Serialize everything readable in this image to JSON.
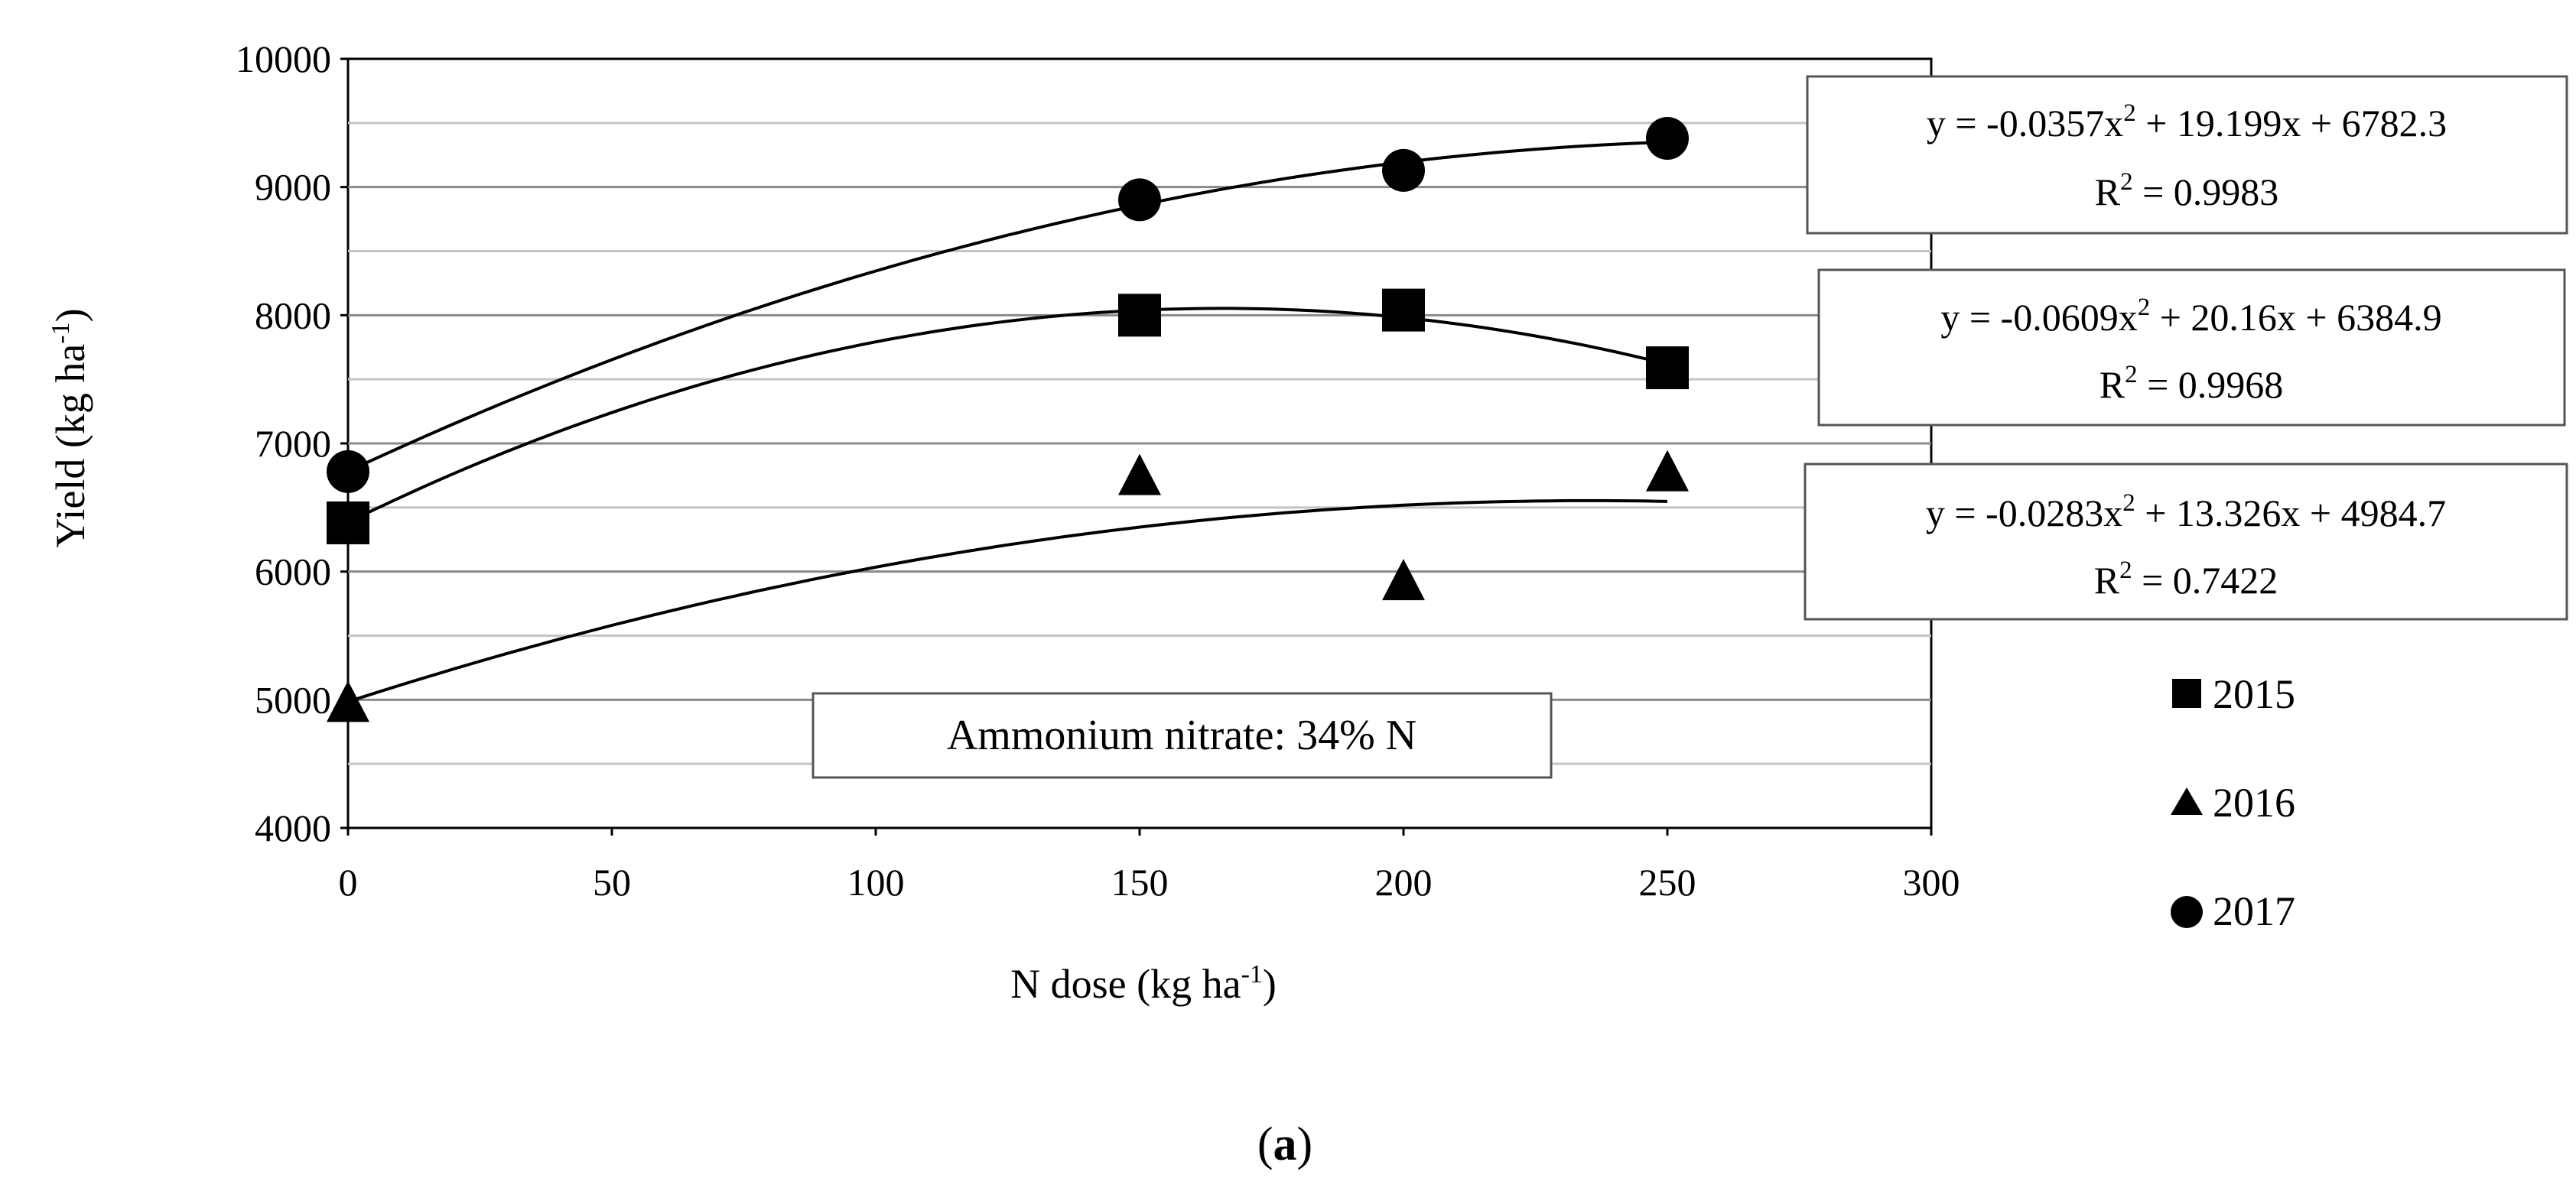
{
  "chart_data": {
    "type": "scatter",
    "title": "",
    "xlabel": "N dose (kg ha",
    "xlabel_sup": "-1",
    "xlabel_end": ")",
    "ylabel": "Yield (kg ha",
    "ylabel_sup": "-1",
    "ylabel_end": ")",
    "xlim": [
      0,
      300
    ],
    "ylim": [
      4000,
      10000
    ],
    "xticks": [
      "0",
      "50",
      "100",
      "150",
      "200",
      "250",
      "300"
    ],
    "yticks": [
      "4000",
      "5000",
      "6000",
      "7000",
      "8000",
      "9000",
      "10000"
    ],
    "grid": "horizontal",
    "series": [
      {
        "name": "2015",
        "marker": "square",
        "x": [
          0,
          150,
          200,
          250
        ],
        "y": [
          6380,
          8000,
          8040,
          7590
        ],
        "fit": {
          "a": -0.0609,
          "b": 20.16,
          "c": 6384.9
        },
        "equation_prefix": "y = -0.0609x",
        "equation_suffix": " + 20.16x + 6384.9",
        "r2_label": "R",
        "r2_value": " = 0.9968"
      },
      {
        "name": "2016",
        "marker": "triangle",
        "x": [
          0,
          150,
          200,
          250
        ],
        "y": [
          4970,
          6740,
          5920,
          6770
        ],
        "fit": {
          "a": -0.0283,
          "b": 13.326,
          "c": 4984.7
        },
        "equation_prefix": "y = -0.0283x",
        "equation_suffix": " + 13.326x + 4984.7",
        "r2_label": "R",
        "r2_value": " = 0.7422"
      },
      {
        "name": "2017",
        "marker": "circle",
        "x": [
          0,
          150,
          200,
          250
        ],
        "y": [
          6780,
          8900,
          9130,
          9380
        ],
        "fit": {
          "a": -0.0357,
          "b": 19.199,
          "c": 6782.3
        },
        "equation_prefix": "y = -0.0357x",
        "equation_suffix": " + 19.199x + 6782.3",
        "r2_label": "R",
        "r2_value": " = 0.9983"
      }
    ],
    "squared_sup": "2",
    "annotation": "Ammonium nitrate: 34% N",
    "legend_position": "right"
  },
  "caption": {
    "open": "(",
    "letter": "a",
    "close": ")"
  }
}
